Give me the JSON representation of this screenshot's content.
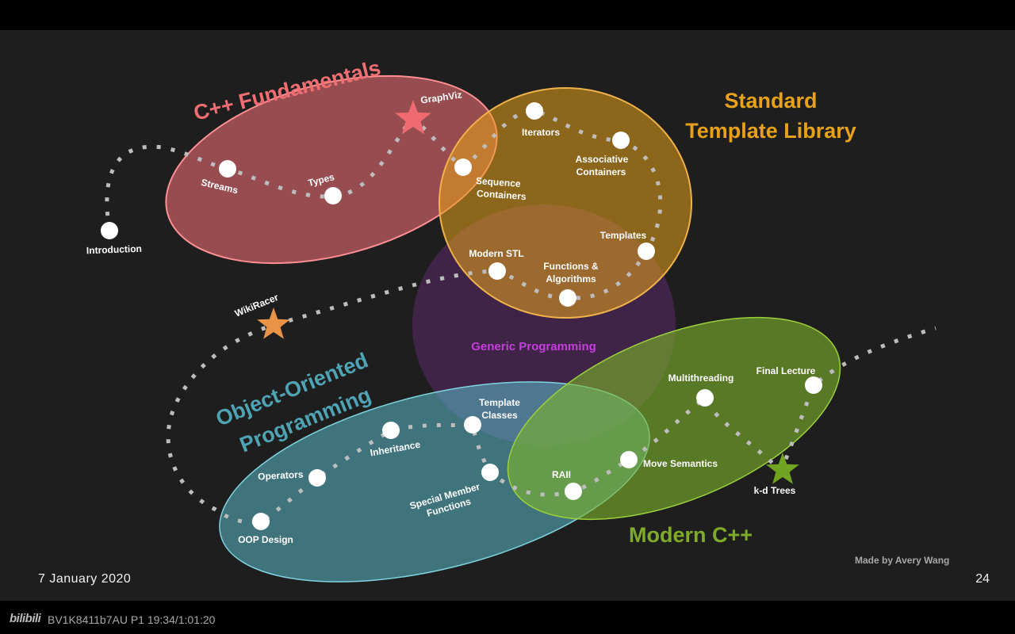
{
  "slide": {
    "date": "7 January 2020",
    "page_number": "24",
    "credit": "Made by Avery Wang"
  },
  "player": {
    "logo": "bilibili",
    "video_info": "BV1K8411b7AU P1 19:34/1:01:20"
  },
  "groups": {
    "fundamentals": {
      "title": "C++ Fundamentals",
      "color": "#f06e72"
    },
    "stl": {
      "title_line1": "Standard",
      "title_line2": "Template Library",
      "color": "#e8a21a"
    },
    "generic": {
      "title": "Generic Programming",
      "color": "#c43fdb"
    },
    "oop": {
      "title_line1": "Object-Oriented",
      "title_line2": "Programming",
      "color": "#4ea3b4"
    },
    "modern": {
      "title": "Modern C++",
      "color": "#7faa2a"
    }
  },
  "nodes": {
    "introduction": "Introduction",
    "streams": "Streams",
    "types": "Types",
    "graphviz": "GraphViz",
    "sequence_containers_line1": "Sequence",
    "sequence_containers_line2": "Containers",
    "iterators": "Iterators",
    "associative_containers_line1": "Associative",
    "associative_containers_line2": "Containers",
    "templates": "Templates",
    "modern_stl": "Modern STL",
    "functions_algorithms_line1": "Functions &",
    "functions_algorithms_line2": "Algorithms",
    "wikiracer": "WikiRacer",
    "template_classes_line1": "Template",
    "template_classes_line2": "Classes",
    "inheritance": "Inheritance",
    "operators": "Operators",
    "oop_design": "OOP Design",
    "special_member_functions_line1": "Special Member",
    "special_member_functions_line2": "Functions",
    "raii": "RAII",
    "move_semantics": "Move Semantics",
    "multithreading": "Multithreading",
    "final_lecture": "Final Lecture",
    "kd_trees": "k-d Trees"
  }
}
